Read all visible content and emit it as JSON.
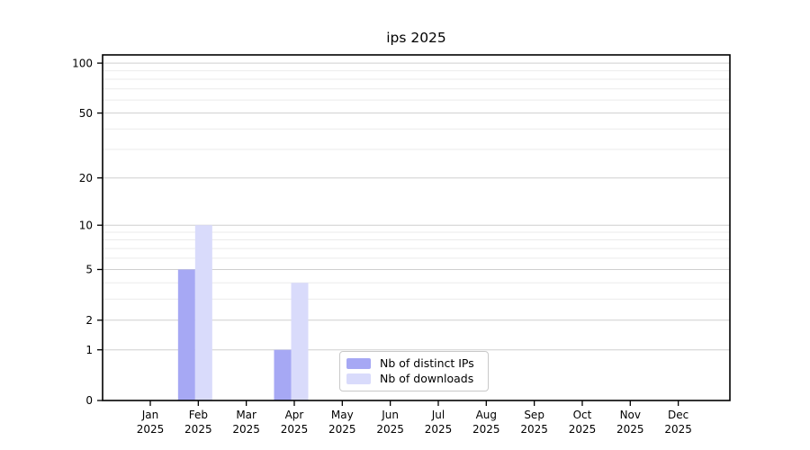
{
  "chart_data": {
    "type": "bar",
    "title": "ips 2025",
    "categories": [
      "Jan",
      "Feb",
      "Mar",
      "Apr",
      "May",
      "Jun",
      "Jul",
      "Aug",
      "Sep",
      "Oct",
      "Nov",
      "Dec"
    ],
    "category_year": "2025",
    "series": [
      {
        "name": "Nb of distinct IPs",
        "color": "#a6a8f4",
        "values": [
          0,
          5,
          0,
          1,
          0,
          0,
          0,
          0,
          0,
          0,
          0,
          0
        ]
      },
      {
        "name": "Nb of downloads",
        "color": "#d9dbfb",
        "values": [
          0,
          10,
          0,
          4,
          0,
          0,
          0,
          0,
          0,
          0,
          0,
          0
        ]
      }
    ],
    "xlabel": "",
    "ylabel": "",
    "y_scale": "log1p",
    "ylim": [
      0,
      112
    ],
    "y_major_ticks": [
      0,
      1,
      2,
      5,
      10,
      20,
      50,
      100
    ],
    "y_minor_gridlines": [
      3,
      4,
      6,
      7,
      8,
      9,
      30,
      40,
      60,
      70,
      80,
      90
    ],
    "grid": true,
    "legend_position": "inside-bottom-center",
    "grid_major_color": "#cfcfcf",
    "grid_minor_color": "#ebebeb",
    "spine_color": "#000000",
    "background_color": "#ffffff"
  }
}
